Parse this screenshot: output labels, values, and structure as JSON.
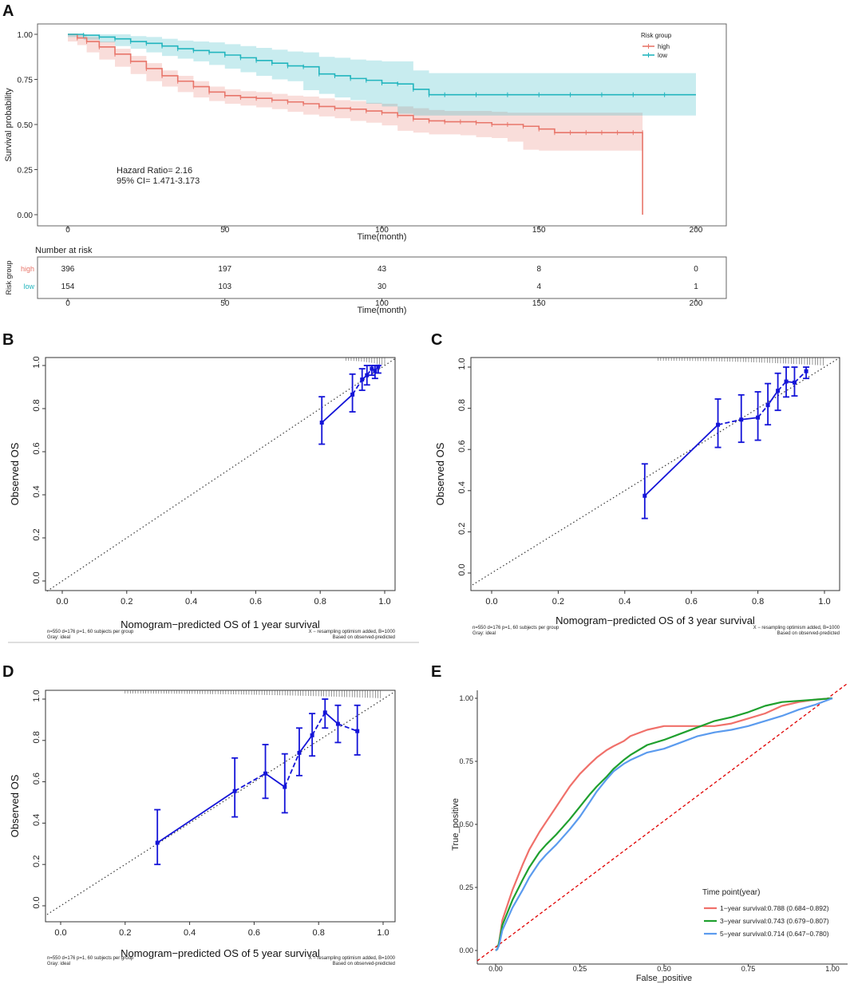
{
  "colors": {
    "high": "#E8766B",
    "low": "#22B5BE",
    "blue": "#1414D8",
    "red_diag": "#E00000",
    "roc_1": "#F0706A",
    "roc_3": "#1FA02E",
    "roc_5": "#5B9BEE",
    "ideal": "#333333",
    "grid": "#555555"
  },
  "panel_labels": [
    "A",
    "B",
    "C",
    "D",
    "E"
  ],
  "chart_data": [
    {
      "id": "A",
      "type": "line",
      "title": "",
      "xlabel": "Time(month)",
      "ylabel": "Survival probability",
      "xlim": [
        0,
        200
      ],
      "ylim": [
        0,
        1
      ],
      "x_ticks": [
        "0",
        "50",
        "100",
        "150",
        "200"
      ],
      "y_ticks": [
        "0.00",
        "0.25",
        "0.50",
        "0.75",
        "1.00"
      ],
      "legend_title": "Risk group",
      "legend_position": "top-right",
      "series": [
        {
          "name": "high",
          "x": [
            0,
            3,
            6,
            10,
            15,
            20,
            25,
            30,
            35,
            40,
            45,
            50,
            55,
            60,
            65,
            70,
            75,
            80,
            85,
            90,
            95,
            100,
            105,
            110,
            115,
            120,
            125,
            130,
            135,
            140,
            145,
            150,
            155,
            160,
            165,
            170,
            175,
            180,
            183,
            183
          ],
          "y": [
            1.0,
            0.98,
            0.96,
            0.93,
            0.89,
            0.85,
            0.81,
            0.77,
            0.74,
            0.71,
            0.68,
            0.66,
            0.65,
            0.645,
            0.635,
            0.625,
            0.615,
            0.6,
            0.59,
            0.585,
            0.575,
            0.565,
            0.55,
            0.53,
            0.52,
            0.515,
            0.515,
            0.51,
            0.5,
            0.5,
            0.49,
            0.475,
            0.455,
            0.455,
            0.455,
            0.455,
            0.455,
            0.455,
            0.455,
            0.0
          ],
          "lower": [
            1.0,
            0.96,
            0.94,
            0.9,
            0.86,
            0.82,
            0.78,
            0.74,
            0.71,
            0.68,
            0.65,
            0.63,
            0.615,
            0.605,
            0.595,
            0.585,
            0.57,
            0.555,
            0.545,
            0.535,
            0.52,
            0.51,
            0.495,
            0.465,
            0.455,
            0.445,
            0.445,
            0.44,
            0.43,
            0.425,
            0.405,
            0.36,
            0.355,
            0.355,
            0.355,
            0.355,
            0.355,
            0.355,
            0.355,
            0.355
          ],
          "upper": [
            1.0,
            1.0,
            0.985,
            0.96,
            0.92,
            0.88,
            0.84,
            0.8,
            0.77,
            0.74,
            0.71,
            0.695,
            0.685,
            0.68,
            0.67,
            0.66,
            0.655,
            0.645,
            0.635,
            0.63,
            0.62,
            0.615,
            0.6,
            0.59,
            0.58,
            0.575,
            0.575,
            0.575,
            0.57,
            0.565,
            0.565,
            0.565,
            0.565,
            0.565,
            0.565,
            0.565,
            0.565,
            0.565,
            0.565,
            0.565
          ]
        },
        {
          "name": "low",
          "x": [
            0,
            5,
            10,
            15,
            20,
            25,
            30,
            35,
            40,
            45,
            50,
            55,
            60,
            65,
            70,
            75,
            80,
            85,
            90,
            95,
            100,
            105,
            110,
            115,
            120,
            130,
            140,
            150,
            160,
            170,
            180,
            190,
            200
          ],
          "y": [
            1.0,
            0.995,
            0.985,
            0.975,
            0.96,
            0.95,
            0.935,
            0.92,
            0.91,
            0.9,
            0.885,
            0.87,
            0.855,
            0.84,
            0.825,
            0.82,
            0.78,
            0.77,
            0.755,
            0.745,
            0.73,
            0.725,
            0.695,
            0.665,
            0.665,
            0.665,
            0.665,
            0.665,
            0.665,
            0.665,
            0.665,
            0.665,
            0.665
          ],
          "lower": [
            1.0,
            0.985,
            0.97,
            0.955,
            0.935,
            0.92,
            0.9,
            0.88,
            0.865,
            0.85,
            0.83,
            0.81,
            0.79,
            0.77,
            0.75,
            0.74,
            0.69,
            0.67,
            0.65,
            0.635,
            0.615,
            0.6,
            0.56,
            0.55,
            0.55,
            0.55,
            0.55,
            0.55,
            0.55,
            0.55,
            0.55,
            0.55,
            0.55
          ],
          "upper": [
            1.0,
            1.0,
            1.0,
            1.0,
            0.99,
            0.985,
            0.975,
            0.965,
            0.96,
            0.955,
            0.945,
            0.935,
            0.925,
            0.915,
            0.905,
            0.9,
            0.875,
            0.87,
            0.86,
            0.855,
            0.85,
            0.85,
            0.8,
            0.785,
            0.785,
            0.785,
            0.785,
            0.785,
            0.785,
            0.785,
            0.785,
            0.785,
            0.785
          ]
        }
      ],
      "annotations": [
        "Hazard Ratio= 2.16",
        "95% CI= 1.471-3.173"
      ],
      "risk_table": {
        "title": "Number at risk",
        "ylabel": "Risk group",
        "xlabel": "Time(month)",
        "x_ticks": [
          "0",
          "50",
          "100",
          "150",
          "200"
        ],
        "rows": [
          {
            "name": "high",
            "values": [
              "396",
              "197",
              "43",
              "8",
              "0"
            ]
          },
          {
            "name": "low",
            "values": [
              "154",
              "103",
              "30",
              "4",
              "1"
            ]
          }
        ]
      }
    },
    {
      "id": "B",
      "type": "scatter",
      "xlabel": "Nomogram−predicted OS of 1 year survival",
      "ylabel": "Observed OS",
      "xlim": [
        0,
        1
      ],
      "ylim": [
        0,
        1
      ],
      "x_ticks": [
        "0.0",
        "0.2",
        "0.4",
        "0.6",
        "0.8",
        "1.0"
      ],
      "y_ticks": [
        "0.0",
        "0.2",
        "0.4",
        "0.6",
        "0.8",
        "1.0"
      ],
      "points": [
        {
          "x": 0.805,
          "y": 0.735,
          "lo": 0.635,
          "hi": 0.855
        },
        {
          "x": 0.9,
          "y": 0.865,
          "lo": 0.785,
          "hi": 0.96
        },
        {
          "x": 0.93,
          "y": 0.935,
          "lo": 0.885,
          "hi": 0.985
        },
        {
          "x": 0.945,
          "y": 0.955,
          "lo": 0.91,
          "hi": 1.0
        },
        {
          "x": 0.96,
          "y": 0.985,
          "lo": 0.955,
          "hi": 1.0
        },
        {
          "x": 0.97,
          "y": 0.975,
          "lo": 0.94,
          "hi": 1.0
        },
        {
          "x": 0.98,
          "y": 0.995,
          "lo": 0.965,
          "hi": 1.0
        }
      ],
      "rug_from": 0.88,
      "footnote_left": [
        "n=550 d=176 p=1, 60 subjects per group",
        "Gray: ideal"
      ],
      "footnote_right": [
        "X − resampling optimism added, B=1000",
        "Based on observed-predicted"
      ]
    },
    {
      "id": "C",
      "type": "scatter",
      "xlabel": "Nomogram−predicted OS of 3 year survival",
      "ylabel": "Observed OS",
      "xlim": [
        0,
        1
      ],
      "ylim": [
        0,
        1
      ],
      "x_ticks": [
        "0.0",
        "0.2",
        "0.4",
        "0.6",
        "0.8",
        "1.0"
      ],
      "y_ticks": [
        "0.0",
        "0.2",
        "0.4",
        "0.6",
        "0.8",
        "1.0"
      ],
      "points": [
        {
          "x": 0.46,
          "y": 0.375,
          "lo": 0.265,
          "hi": 0.53
        },
        {
          "x": 0.68,
          "y": 0.72,
          "lo": 0.61,
          "hi": 0.845
        },
        {
          "x": 0.75,
          "y": 0.745,
          "lo": 0.635,
          "hi": 0.865
        },
        {
          "x": 0.8,
          "y": 0.755,
          "lo": 0.645,
          "hi": 0.88
        },
        {
          "x": 0.83,
          "y": 0.815,
          "lo": 0.72,
          "hi": 0.92
        },
        {
          "x": 0.86,
          "y": 0.885,
          "lo": 0.79,
          "hi": 0.97
        },
        {
          "x": 0.885,
          "y": 0.93,
          "lo": 0.855,
          "hi": 1.0
        },
        {
          "x": 0.91,
          "y": 0.925,
          "lo": 0.86,
          "hi": 1.0
        },
        {
          "x": 0.945,
          "y": 0.98,
          "lo": 0.945,
          "hi": 1.0
        }
      ],
      "rug_from": 0.5,
      "footnote_left": [
        "n=550 d=176 p=1, 60 subjects per group",
        "Gray: ideal"
      ],
      "footnote_right": [
        "X − resampling optimism added, B=1000",
        "Based on observed-predicted"
      ]
    },
    {
      "id": "D",
      "type": "scatter",
      "xlabel": "Nomogram−predicted OS of 5 year survival",
      "ylabel": "Observed OS",
      "xlim": [
        0,
        1
      ],
      "ylim": [
        0,
        1
      ],
      "x_ticks": [
        "0.0",
        "0.2",
        "0.4",
        "0.6",
        "0.8",
        "1.0"
      ],
      "y_ticks": [
        "0.0",
        "0.2",
        "0.4",
        "0.6",
        "0.8",
        "1.0"
      ],
      "points": [
        {
          "x": 0.3,
          "y": 0.305,
          "lo": 0.2,
          "hi": 0.465
        },
        {
          "x": 0.54,
          "y": 0.555,
          "lo": 0.43,
          "hi": 0.715
        },
        {
          "x": 0.635,
          "y": 0.64,
          "lo": 0.52,
          "hi": 0.78
        },
        {
          "x": 0.695,
          "y": 0.575,
          "lo": 0.45,
          "hi": 0.735
        },
        {
          "x": 0.74,
          "y": 0.74,
          "lo": 0.63,
          "hi": 0.86
        },
        {
          "x": 0.78,
          "y": 0.825,
          "lo": 0.725,
          "hi": 0.93
        },
        {
          "x": 0.82,
          "y": 0.935,
          "lo": 0.86,
          "hi": 1.0
        },
        {
          "x": 0.86,
          "y": 0.88,
          "lo": 0.79,
          "hi": 0.97
        },
        {
          "x": 0.92,
          "y": 0.845,
          "lo": 0.73,
          "hi": 0.97
        }
      ],
      "rug_from": 0.2,
      "footnote_left": [
        "n=550 d=176 p=1, 60 subjects per group",
        "Gray: ideal"
      ],
      "footnote_right": [
        "X − resampling optimism added, B=1000",
        "Based on observed-predicted"
      ]
    },
    {
      "id": "E",
      "type": "line",
      "xlabel": "False_positive",
      "ylabel": "True_positive",
      "xlim": [
        0,
        1
      ],
      "ylim": [
        0,
        1
      ],
      "x_ticks": [
        "0.00",
        "0.25",
        "0.50",
        "0.75",
        "1.00"
      ],
      "y_ticks": [
        "0.00",
        "0.25",
        "0.50",
        "0.75",
        "1.00"
      ],
      "legend_title": "Time point(year)",
      "legend_position": "bottom-right",
      "series": [
        {
          "name": "1−year survival:0.788 (0.684−0.892)",
          "x": [
            0,
            0.005,
            0.01,
            0.02,
            0.05,
            0.08,
            0.1,
            0.13,
            0.15,
            0.18,
            0.2,
            0.22,
            0.25,
            0.28,
            0.3,
            0.33,
            0.35,
            0.38,
            0.4,
            0.45,
            0.5,
            0.55,
            0.6,
            0.65,
            0.7,
            0.75,
            0.8,
            0.85,
            0.9,
            0.95,
            1.0
          ],
          "y": [
            0,
            0.005,
            0.03,
            0.12,
            0.24,
            0.34,
            0.4,
            0.47,
            0.51,
            0.57,
            0.61,
            0.65,
            0.7,
            0.74,
            0.765,
            0.795,
            0.81,
            0.83,
            0.85,
            0.875,
            0.89,
            0.89,
            0.89,
            0.89,
            0.9,
            0.92,
            0.94,
            0.97,
            0.985,
            0.995,
            1.0
          ]
        },
        {
          "name": "3−year survival:0.743 (0.679−0.807)",
          "x": [
            0,
            0.005,
            0.01,
            0.02,
            0.05,
            0.08,
            0.1,
            0.13,
            0.15,
            0.18,
            0.2,
            0.22,
            0.25,
            0.28,
            0.3,
            0.33,
            0.35,
            0.38,
            0.4,
            0.45,
            0.5,
            0.55,
            0.6,
            0.65,
            0.7,
            0.75,
            0.8,
            0.85,
            0.9,
            0.95,
            1.0
          ],
          "y": [
            0,
            0.005,
            0.03,
            0.1,
            0.2,
            0.28,
            0.33,
            0.39,
            0.42,
            0.46,
            0.49,
            0.52,
            0.57,
            0.62,
            0.65,
            0.69,
            0.72,
            0.755,
            0.775,
            0.815,
            0.835,
            0.86,
            0.885,
            0.91,
            0.925,
            0.945,
            0.97,
            0.985,
            0.99,
            0.995,
            1.0
          ]
        },
        {
          "name": "5−year survival:0.714 (0.647−0.780)",
          "x": [
            0,
            0.005,
            0.01,
            0.02,
            0.05,
            0.08,
            0.1,
            0.13,
            0.15,
            0.18,
            0.2,
            0.22,
            0.25,
            0.28,
            0.3,
            0.33,
            0.35,
            0.38,
            0.4,
            0.45,
            0.5,
            0.55,
            0.6,
            0.65,
            0.7,
            0.75,
            0.8,
            0.85,
            0.9,
            0.95,
            1.0
          ],
          "y": [
            0,
            0.005,
            0.02,
            0.08,
            0.17,
            0.24,
            0.29,
            0.35,
            0.38,
            0.42,
            0.45,
            0.48,
            0.53,
            0.59,
            0.63,
            0.68,
            0.71,
            0.74,
            0.755,
            0.785,
            0.8,
            0.825,
            0.85,
            0.865,
            0.875,
            0.89,
            0.91,
            0.93,
            0.955,
            0.975,
            1.0
          ]
        }
      ],
      "reference_line": [
        [
          0,
          0
        ],
        [
          1,
          1
        ]
      ]
    }
  ]
}
